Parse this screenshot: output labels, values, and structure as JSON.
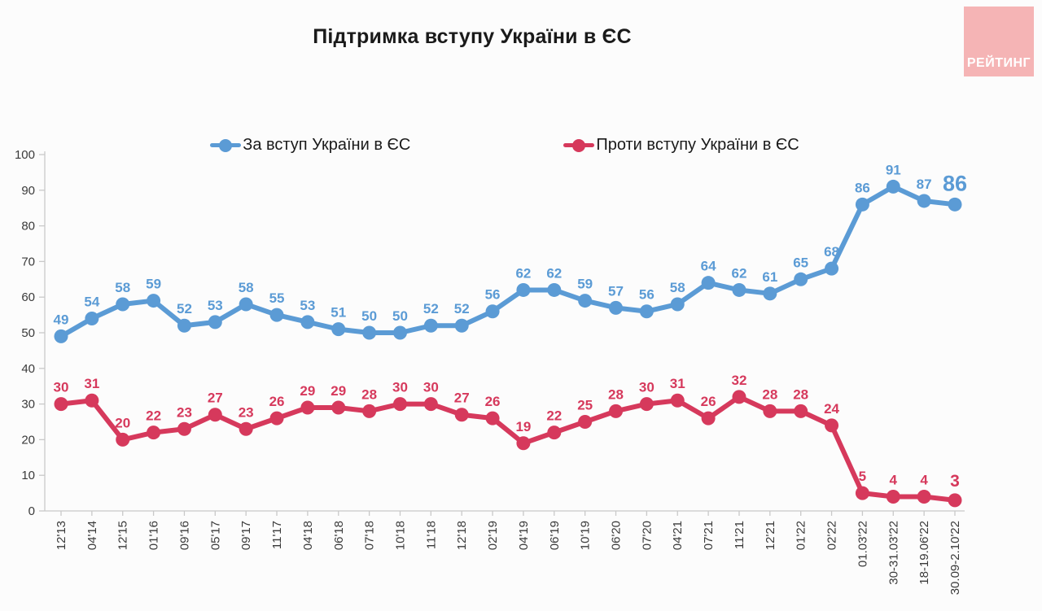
{
  "title": "Підтримка вступу України в ЄС",
  "logo": {
    "text": "РЕЙТИНГ",
    "bg_color": "#f5b4b5",
    "text_color": "#ffffff"
  },
  "chart_data": {
    "type": "line",
    "title": "Підтримка вступу України в ЄС",
    "categories": [
      "12'13",
      "04'14",
      "12'15",
      "01'16",
      "09'16",
      "05'17",
      "09'17",
      "11'17",
      "04'18",
      "06'18",
      "07'18",
      "10'18",
      "11'18",
      "12'18",
      "02'19",
      "04'19",
      "06'19",
      "10'19",
      "06'20",
      "07'20",
      "04'21",
      "07'21",
      "11'21",
      "12'21",
      "01'22",
      "02'22",
      "01.03'22",
      "30-31.03'22",
      "18-19.06'22",
      "30.09-2.10'22"
    ],
    "series": [
      {
        "name": "За вступ України в ЄС",
        "color": "#5b9bd5",
        "values": [
          49,
          54,
          58,
          59,
          52,
          53,
          58,
          55,
          53,
          51,
          50,
          50,
          52,
          52,
          56,
          62,
          62,
          59,
          57,
          56,
          58,
          64,
          62,
          61,
          65,
          68,
          86,
          91,
          87,
          86
        ]
      },
      {
        "name": "Проти вступу України в ЄС",
        "color": "#d6395c",
        "values": [
          30,
          31,
          20,
          22,
          23,
          27,
          23,
          26,
          29,
          29,
          28,
          30,
          30,
          27,
          26,
          19,
          22,
          25,
          28,
          30,
          31,
          26,
          32,
          28,
          28,
          24,
          5,
          4,
          4,
          3
        ]
      }
    ],
    "ylim": [
      0,
      100
    ],
    "yticks": [
      0,
      10,
      20,
      30,
      40,
      50,
      60,
      70,
      80,
      90,
      100
    ],
    "grid": false,
    "legend_position": "top",
    "axis_color": "#c9c9c9",
    "tick_label_color": "#3a3a3a",
    "label_font_size": 17,
    "last_label_font_sizes": [
      27,
      21
    ]
  }
}
